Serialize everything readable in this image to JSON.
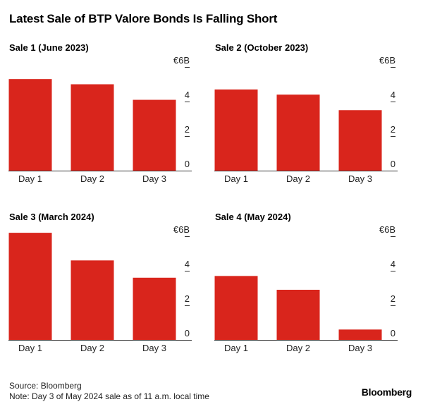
{
  "title": "Latest Sale of BTP Valore Bonds Is Falling Short",
  "colors": {
    "bar": "#d9251c",
    "axis": "#333333",
    "text": "#222222"
  },
  "chart_data": [
    {
      "type": "bar",
      "title": "Sale 1 (June 2023)",
      "categories": [
        "Day 1",
        "Day 2",
        "Day 3"
      ],
      "values": [
        5.3,
        5.0,
        4.1
      ],
      "y_ticks": [
        0,
        2,
        4,
        6
      ],
      "y_tick_labels": [
        "0",
        "2",
        "4",
        "€6B"
      ],
      "ylim": [
        0,
        6
      ],
      "y_axis_side": "right",
      "grid": false
    },
    {
      "type": "bar",
      "title": "Sale 2 (October 2023)",
      "categories": [
        "Day 1",
        "Day 2",
        "Day 3"
      ],
      "values": [
        4.7,
        4.4,
        3.5
      ],
      "y_ticks": [
        0,
        2,
        4,
        6
      ],
      "y_tick_labels": [
        "0",
        "2",
        "4",
        "€6B"
      ],
      "ylim": [
        0,
        6
      ],
      "y_axis_side": "right",
      "grid": false
    },
    {
      "type": "bar",
      "title": "Sale 3 (March 2024)",
      "categories": [
        "Day 1",
        "Day 2",
        "Day 3"
      ],
      "values": [
        6.2,
        4.6,
        3.6
      ],
      "y_ticks": [
        0,
        2,
        4,
        6
      ],
      "y_tick_labels": [
        "0",
        "2",
        "4",
        "€6B"
      ],
      "ylim": [
        0,
        6
      ],
      "y_axis_side": "right",
      "grid": false
    },
    {
      "type": "bar",
      "title": "Sale 4 (May 2024)",
      "categories": [
        "Day 1",
        "Day 2",
        "Day 3"
      ],
      "values": [
        3.7,
        2.9,
        0.6
      ],
      "y_ticks": [
        0,
        2,
        4,
        6
      ],
      "y_tick_labels": [
        "0",
        "2",
        "4",
        "€6B"
      ],
      "ylim": [
        0,
        6
      ],
      "y_axis_side": "right",
      "grid": false
    }
  ],
  "footer": {
    "source": "Source: Bloomberg",
    "note": "Note: Day 3 of May 2024 sale as of 11 a.m. local time"
  },
  "brand": "Bloomberg"
}
